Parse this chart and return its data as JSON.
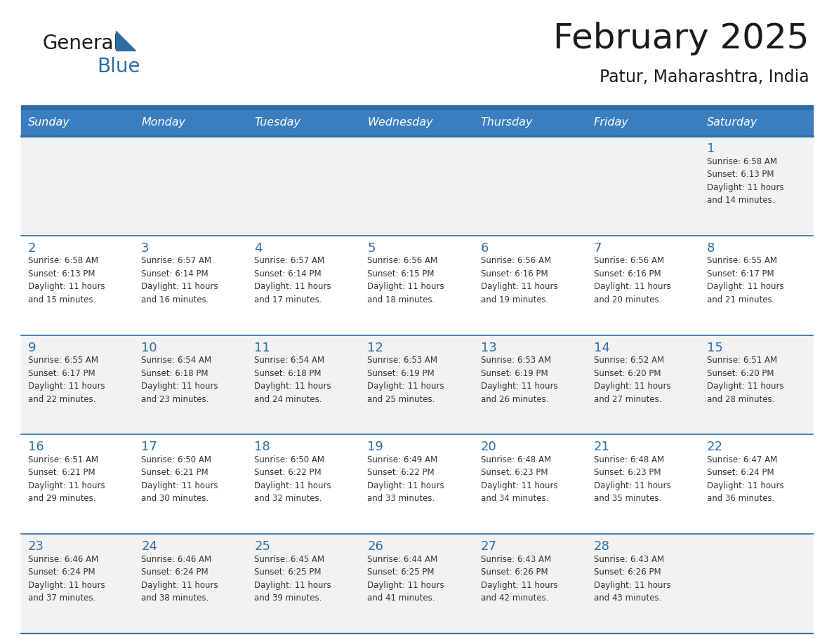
{
  "title": "February 2025",
  "subtitle": "Patur, Maharashtra, India",
  "days_of_week": [
    "Sunday",
    "Monday",
    "Tuesday",
    "Wednesday",
    "Thursday",
    "Friday",
    "Saturday"
  ],
  "header_bg": "#3a7ebf",
  "header_text": "#ffffff",
  "row_bg_even": "#f2f2f2",
  "row_bg_odd": "#ffffff",
  "separator_color": "#2e6da4",
  "day_number_color": "#2e6da4",
  "cell_text_color": "#333333",
  "background_color": "#ffffff",
  "logo_general_color": "#1a1a1a",
  "logo_blue_color": "#2e6da4",
  "logo_triangle_color": "#2e6da4",
  "title_color": "#1a1a1a",
  "weeks": [
    [
      {
        "day": null,
        "sunrise": null,
        "sunset": null,
        "daylight": null
      },
      {
        "day": null,
        "sunrise": null,
        "sunset": null,
        "daylight": null
      },
      {
        "day": null,
        "sunrise": null,
        "sunset": null,
        "daylight": null
      },
      {
        "day": null,
        "sunrise": null,
        "sunset": null,
        "daylight": null
      },
      {
        "day": null,
        "sunrise": null,
        "sunset": null,
        "daylight": null
      },
      {
        "day": null,
        "sunrise": null,
        "sunset": null,
        "daylight": null
      },
      {
        "day": 1,
        "sunrise": "6:58 AM",
        "sunset": "6:13 PM",
        "daylight": "11 hours and 14 minutes."
      }
    ],
    [
      {
        "day": 2,
        "sunrise": "6:58 AM",
        "sunset": "6:13 PM",
        "daylight": "11 hours and 15 minutes."
      },
      {
        "day": 3,
        "sunrise": "6:57 AM",
        "sunset": "6:14 PM",
        "daylight": "11 hours and 16 minutes."
      },
      {
        "day": 4,
        "sunrise": "6:57 AM",
        "sunset": "6:14 PM",
        "daylight": "11 hours and 17 minutes."
      },
      {
        "day": 5,
        "sunrise": "6:56 AM",
        "sunset": "6:15 PM",
        "daylight": "11 hours and 18 minutes."
      },
      {
        "day": 6,
        "sunrise": "6:56 AM",
        "sunset": "6:16 PM",
        "daylight": "11 hours and 19 minutes."
      },
      {
        "day": 7,
        "sunrise": "6:56 AM",
        "sunset": "6:16 PM",
        "daylight": "11 hours and 20 minutes."
      },
      {
        "day": 8,
        "sunrise": "6:55 AM",
        "sunset": "6:17 PM",
        "daylight": "11 hours and 21 minutes."
      }
    ],
    [
      {
        "day": 9,
        "sunrise": "6:55 AM",
        "sunset": "6:17 PM",
        "daylight": "11 hours and 22 minutes."
      },
      {
        "day": 10,
        "sunrise": "6:54 AM",
        "sunset": "6:18 PM",
        "daylight": "11 hours and 23 minutes."
      },
      {
        "day": 11,
        "sunrise": "6:54 AM",
        "sunset": "6:18 PM",
        "daylight": "11 hours and 24 minutes."
      },
      {
        "day": 12,
        "sunrise": "6:53 AM",
        "sunset": "6:19 PM",
        "daylight": "11 hours and 25 minutes."
      },
      {
        "day": 13,
        "sunrise": "6:53 AM",
        "sunset": "6:19 PM",
        "daylight": "11 hours and 26 minutes."
      },
      {
        "day": 14,
        "sunrise": "6:52 AM",
        "sunset": "6:20 PM",
        "daylight": "11 hours and 27 minutes."
      },
      {
        "day": 15,
        "sunrise": "6:51 AM",
        "sunset": "6:20 PM",
        "daylight": "11 hours and 28 minutes."
      }
    ],
    [
      {
        "day": 16,
        "sunrise": "6:51 AM",
        "sunset": "6:21 PM",
        "daylight": "11 hours and 29 minutes."
      },
      {
        "day": 17,
        "sunrise": "6:50 AM",
        "sunset": "6:21 PM",
        "daylight": "11 hours and 30 minutes."
      },
      {
        "day": 18,
        "sunrise": "6:50 AM",
        "sunset": "6:22 PM",
        "daylight": "11 hours and 32 minutes."
      },
      {
        "day": 19,
        "sunrise": "6:49 AM",
        "sunset": "6:22 PM",
        "daylight": "11 hours and 33 minutes."
      },
      {
        "day": 20,
        "sunrise": "6:48 AM",
        "sunset": "6:23 PM",
        "daylight": "11 hours and 34 minutes."
      },
      {
        "day": 21,
        "sunrise": "6:48 AM",
        "sunset": "6:23 PM",
        "daylight": "11 hours and 35 minutes."
      },
      {
        "day": 22,
        "sunrise": "6:47 AM",
        "sunset": "6:24 PM",
        "daylight": "11 hours and 36 minutes."
      }
    ],
    [
      {
        "day": 23,
        "sunrise": "6:46 AM",
        "sunset": "6:24 PM",
        "daylight": "11 hours and 37 minutes."
      },
      {
        "day": 24,
        "sunrise": "6:46 AM",
        "sunset": "6:24 PM",
        "daylight": "11 hours and 38 minutes."
      },
      {
        "day": 25,
        "sunrise": "6:45 AM",
        "sunset": "6:25 PM",
        "daylight": "11 hours and 39 minutes."
      },
      {
        "day": 26,
        "sunrise": "6:44 AM",
        "sunset": "6:25 PM",
        "daylight": "11 hours and 41 minutes."
      },
      {
        "day": 27,
        "sunrise": "6:43 AM",
        "sunset": "6:26 PM",
        "daylight": "11 hours and 42 minutes."
      },
      {
        "day": 28,
        "sunrise": "6:43 AM",
        "sunset": "6:26 PM",
        "daylight": "11 hours and 43 minutes."
      },
      {
        "day": null,
        "sunrise": null,
        "sunset": null,
        "daylight": null
      }
    ]
  ]
}
